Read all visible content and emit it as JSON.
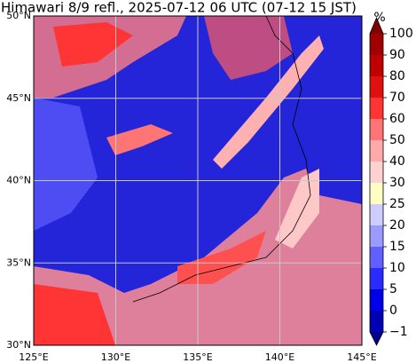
{
  "title": "Himawari 8/9 refl., 2025-07-12 06 UTC (07-12 15 JST)",
  "map": {
    "lon_range": [
      125,
      145
    ],
    "lat_range": [
      30,
      50
    ],
    "lon_ticks": [
      {
        "value": 125,
        "label": "125°E"
      },
      {
        "value": 130,
        "label": "130°E"
      },
      {
        "value": 135,
        "label": "135°E"
      },
      {
        "value": 140,
        "label": "140°E"
      },
      {
        "value": 145,
        "label": "145°E"
      }
    ],
    "lat_ticks": [
      {
        "value": 30,
        "label": "30°N"
      },
      {
        "value": 35,
        "label": "35°N"
      },
      {
        "value": 40,
        "label": "40°N"
      },
      {
        "value": 45,
        "label": "45°N"
      },
      {
        "value": 50,
        "label": "50°N"
      }
    ],
    "grid": true
  },
  "colorbar": {
    "unit": "%",
    "levels": [
      {
        "value": -1,
        "label": "−1"
      },
      0,
      5,
      10,
      15,
      20,
      25,
      30,
      40,
      50,
      60,
      70,
      80,
      90,
      100
    ],
    "colors": [
      "#00008b",
      "#0000b4",
      "#0000e6",
      "#2b2bff",
      "#6060ff",
      "#9a9aff",
      "#cdcdff",
      "#ffffc4",
      "#ffd2d2",
      "#ffaaaa",
      "#ff7474",
      "#ff3434",
      "#e01010",
      "#c00000",
      "#a00000",
      "#800000"
    ]
  }
}
